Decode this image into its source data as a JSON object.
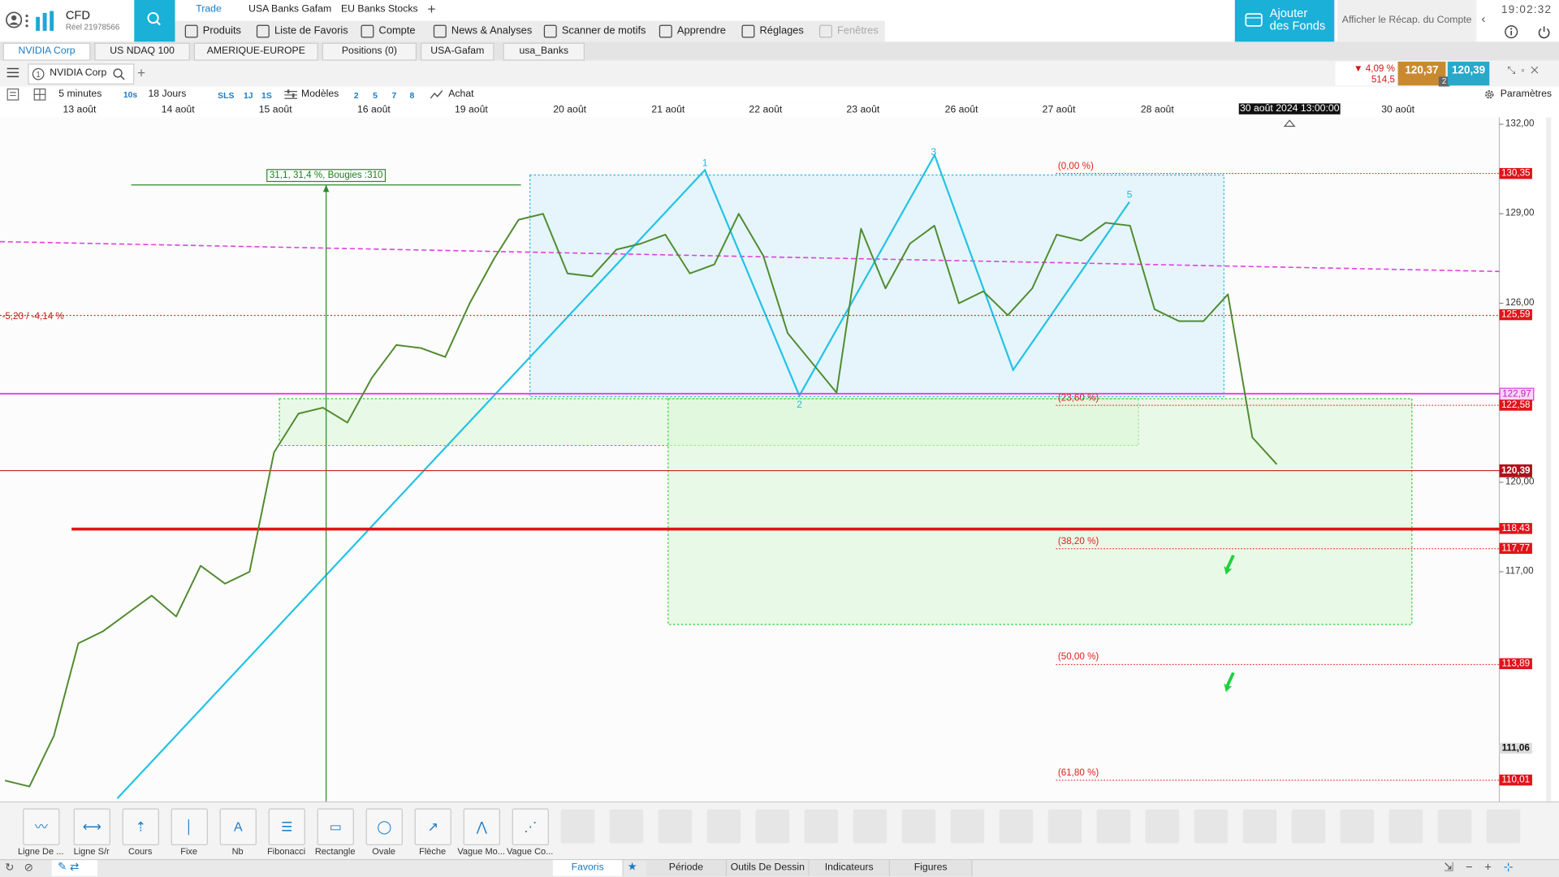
{
  "header": {
    "account_type": "CFD",
    "account_id": "Réel 21978566",
    "tabs": [
      "Trade",
      "USA Banks Gafam",
      "EU Banks Stocks"
    ],
    "menu": [
      "Produits",
      "Liste de Favoris",
      "Compte",
      "News & Analyses",
      "Scanner de motifs",
      "Apprendre",
      "Réglages",
      "Fenêtres"
    ],
    "add_funds": "Ajouter des Fonds",
    "account_summary": "Afficher le Récap. du Compte",
    "clock": "19:02:32"
  },
  "watchlist_tabs": [
    "NVIDIA Corp",
    "US NDAQ 100",
    "AMERIQUE-EUROPE",
    "Positions (0)",
    "USA-Gafam",
    "usa_Banks"
  ],
  "instrument": {
    "name": "NVIDIA Corp",
    "change": "4,09 %",
    "change_points": "514,5",
    "bid": "120,37",
    "ask": "120,39",
    "spread": "2"
  },
  "chart_toolbar": {
    "interval": "5 minutes",
    "step": "10s",
    "range": "18 Jours",
    "presets": [
      "SLS",
      "1J",
      "1S"
    ],
    "models": "Modèles",
    "numbers": [
      "2",
      "5",
      "7",
      "8"
    ],
    "order": "Achat",
    "settings": "Paramètres"
  },
  "chart": {
    "x_labels": [
      "13 août",
      "14 août",
      "15 août",
      "16 août",
      "19 août",
      "20 août",
      "21 août",
      "22 août",
      "23 août",
      "26 août",
      "27 août",
      "28 août",
      "30 août"
    ],
    "cursor_label": "30 août 2024 13:00:00",
    "yticks": [
      {
        "value": 132,
        "label": "132,00"
      },
      {
        "value": 129,
        "label": "129,00"
      },
      {
        "value": 126,
        "label": "126,00"
      },
      {
        "value": 120,
        "label": "120,00"
      },
      {
        "value": 117,
        "label": "117,00"
      }
    ],
    "price_tags": [
      {
        "value": 130.35,
        "label": "130,35",
        "fib": "(0,00 %)"
      },
      {
        "value": 125.59,
        "label": "125,59"
      },
      {
        "value": 122.97,
        "label": "122,97"
      },
      {
        "value": 122.58,
        "label": "122,58",
        "fib": "(23,60 %)"
      },
      {
        "value": 120.39,
        "label": "120,39"
      },
      {
        "value": 118.43,
        "label": "118,43"
      },
      {
        "value": 117.77,
        "label": "117,77",
        "fib": "(38,20 %)"
      },
      {
        "value": 113.89,
        "label": "113,89",
        "fib": "(50,00 %)"
      },
      {
        "value": 111.06,
        "label": "111,06"
      },
      {
        "value": 110.01,
        "label": "110,01",
        "fib": "(61,80 %)"
      }
    ],
    "price": [
      110.0,
      109.8,
      111.5,
      114.6,
      115.0,
      115.6,
      116.2,
      115.5,
      117.2,
      116.6,
      117.0,
      121.0,
      122.3,
      122.5,
      122.0,
      123.5,
      124.6,
      124.5,
      124.2,
      126.0,
      127.5,
      128.8,
      129.0,
      127.0,
      126.9,
      127.8,
      128.0,
      128.3,
      127.0,
      127.3,
      129.0,
      127.6,
      125.0,
      124.0,
      123.0,
      128.5,
      126.5,
      128.0,
      128.6,
      126.0,
      126.4,
      125.6,
      126.5,
      128.3,
      128.1,
      128.7,
      128.6,
      125.8,
      125.4,
      125.4,
      126.3,
      121.5,
      120.6
    ],
    "measure_label": "31,1, 31,4 %, Bougies :310",
    "left_label": "-5,20 / -4,14 %",
    "waves": [
      "1",
      "2",
      "3",
      "5"
    ]
  },
  "drawing_tools": [
    "Ligne De ...",
    "Ligne S/r",
    "Cours",
    "Fixe",
    "Nb",
    "Fibonacci",
    "Rectangle",
    "Ovale",
    "Flèche",
    "Vague Mo...",
    "Vague Co..."
  ],
  "bottom_tabs": [
    "Favoris",
    "Période",
    "Outils De Dessin",
    "Indicateurs",
    "Figures"
  ]
}
